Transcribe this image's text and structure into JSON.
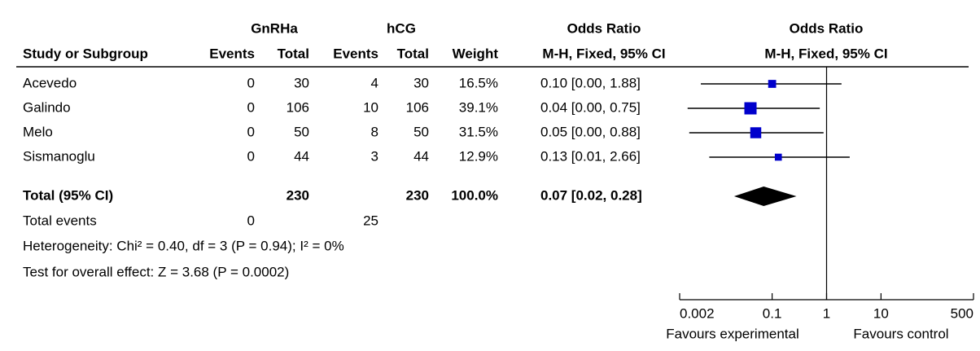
{
  "chart_data": {
    "type": "forest",
    "group_headers": [
      "GnRHa",
      "hCG",
      "Odds Ratio",
      "Odds Ratio"
    ],
    "column_headers": [
      "Study or Subgroup",
      "Events",
      "Total",
      "Events",
      "Total",
      "Weight",
      "M-H, Fixed, 95% CI",
      "M-H, Fixed, 95% CI"
    ],
    "studies": [
      {
        "name": "Acevedo",
        "events_1": 0,
        "total_1": 30,
        "events_2": 4,
        "total_2": 30,
        "weight": 16.5,
        "weight_label": "16.5%",
        "odds_ratio": 0.1,
        "ci_lower": 0.0049,
        "ci_upper": 1.88,
        "or_label": "0.10 [0.00, 1.88]"
      },
      {
        "name": "Galindo",
        "events_1": 0,
        "total_1": 106,
        "events_2": 10,
        "total_2": 106,
        "weight": 39.1,
        "weight_label": "39.1%",
        "odds_ratio": 0.04,
        "ci_lower": 0.0028,
        "ci_upper": 0.75,
        "or_label": "0.04 [0.00, 0.75]"
      },
      {
        "name": "Melo",
        "events_1": 0,
        "total_1": 50,
        "events_2": 8,
        "total_2": 50,
        "weight": 31.5,
        "weight_label": "31.5%",
        "odds_ratio": 0.05,
        "ci_lower": 0.003,
        "ci_upper": 0.88,
        "or_label": "0.05 [0.00, 0.88]"
      },
      {
        "name": "Sismanoglu",
        "events_1": 0,
        "total_1": 44,
        "events_2": 3,
        "total_2": 44,
        "weight": 12.9,
        "weight_label": "12.9%",
        "odds_ratio": 0.13,
        "ci_lower": 0.007,
        "ci_upper": 2.66,
        "or_label": "0.13 [0.01, 2.66]"
      }
    ],
    "total": {
      "name": "Total (95% CI)",
      "total_1": 230,
      "total_2": 230,
      "weight": 100.0,
      "weight_label": "100.0%",
      "odds_ratio": 0.07,
      "ci_lower": 0.02,
      "ci_upper": 0.28,
      "or_label": "0.07 [0.02, 0.28]"
    },
    "total_events": {
      "name": "Total events",
      "events_1": 0,
      "events_2": 25
    },
    "heterogeneity": "Heterogeneity: Chi² = 0.40, df = 3 (P = 0.94); I² = 0%",
    "overall_effect": "Test for overall effect: Z = 3.68 (P = 0.0002)",
    "xlim": [
      0.002,
      500
    ],
    "xticks": [
      0.002,
      0.1,
      1,
      10,
      500
    ],
    "log_x": true,
    "reference_line": 1,
    "x_labels": [
      "Favours experimental",
      "Favours control"
    ],
    "square_color": "#0000cc",
    "diamond_color": "#000000"
  }
}
